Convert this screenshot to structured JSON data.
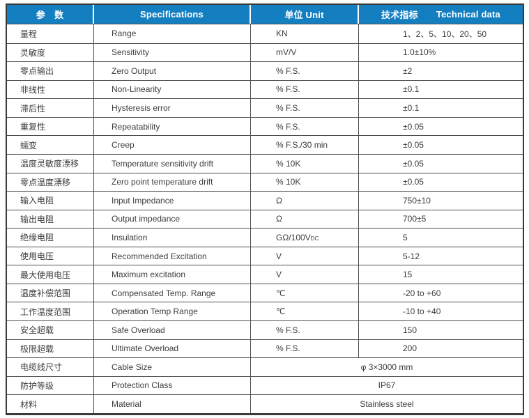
{
  "colors": {
    "header_bg": "#147fc0",
    "header_text": "#ffffff",
    "border_outer": "#3a3a3a",
    "border_inner": "#4f4f4f",
    "body_text": "#3c3c3c"
  },
  "table": {
    "header": {
      "param_zh": "参　数",
      "spec_en": "Specifications",
      "unit": "单位 Unit",
      "tech_zh": "技术指标",
      "tech_en": "Technical data"
    },
    "rows": [
      {
        "zh": "量程",
        "en": "Range",
        "unit": "KN",
        "value": "1、2、5、10、20、50"
      },
      {
        "zh": "灵敏度",
        "en": "Sensitivity",
        "unit": "mV/V",
        "value": "1.0±10%"
      },
      {
        "zh": "零点输出",
        "en": "Zero Output",
        "unit": "% F.S.",
        "value": "±2"
      },
      {
        "zh": "非线性",
        "en": "Non-Linearity",
        "unit": "% F.S.",
        "value": "±0.1"
      },
      {
        "zh": "滞后性",
        "en": "Hysteresis error",
        "unit": "% F.S.",
        "value": "±0.1"
      },
      {
        "zh": "重复性",
        "en": "Repeatability",
        "unit": "% F.S.",
        "value": "±0.05"
      },
      {
        "zh": "蠕变",
        "en": "Creep",
        "unit": "% F.S./30 min",
        "value": "±0.05"
      },
      {
        "zh": "温度灵敏度漂移",
        "en": "Temperature sensitivity drift",
        "unit": "% 10K",
        "value": "±0.05"
      },
      {
        "zh": "零点温度漂移",
        "en": "Zero point temperature drift",
        "unit": "% 10K",
        "value": "±0.05"
      },
      {
        "zh": "输入电阻",
        "en": "Input Impedance",
        "unit": "Ω",
        "value": "750±10"
      },
      {
        "zh": "输出电阻",
        "en": "Output impedance",
        "unit": "Ω",
        "value": "700±5"
      },
      {
        "zh": "绝缘电阻",
        "en": "Insulation",
        "unit": "GΩ/100V",
        "unit_sub": "DC",
        "value": "5"
      },
      {
        "zh": "使用电压",
        "en": "Recommended Excitation",
        "unit": "V",
        "value": "5-12"
      },
      {
        "zh": "最大使用电压",
        "en": "Maximum excitation",
        "unit": "V",
        "value": "15"
      },
      {
        "zh": "温度补偿范围",
        "en": "Compensated Temp. Range",
        "unit": "℃",
        "value": "-20 to +60"
      },
      {
        "zh": "工作温度范围",
        "en": "Operation Temp Range",
        "unit": "℃",
        "value": "-10 to +40"
      },
      {
        "zh": "安全超载",
        "en": "Safe Overload",
        "unit": "% F.S.",
        "value": "150"
      },
      {
        "zh": "极限超载",
        "en": "Ultimate Overload",
        "unit": "% F.S.",
        "value": "200"
      },
      {
        "zh": "电缆线尺寸",
        "en": "Cable Size",
        "merged": true,
        "value": "φ 3×3000 mm"
      },
      {
        "zh": "防护等级",
        "en": "Protection Class",
        "merged": true,
        "value": "IP67"
      },
      {
        "zh": "材料",
        "en": "Material",
        "merged": true,
        "value": "Stainless steel"
      }
    ]
  }
}
